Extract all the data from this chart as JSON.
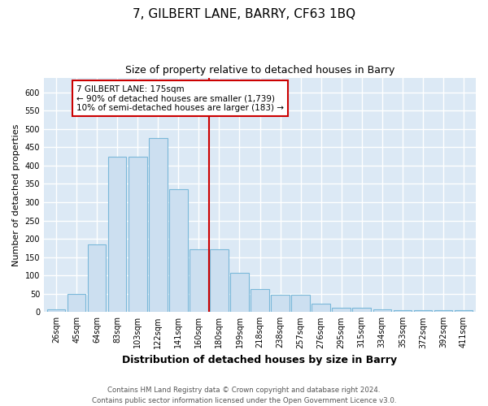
{
  "title": "7, GILBERT LANE, BARRY, CF63 1BQ",
  "subtitle": "Size of property relative to detached houses in Barry",
  "xlabel": "Distribution of detached houses by size in Barry",
  "ylabel": "Number of detached properties",
  "categories": [
    "26sqm",
    "45sqm",
    "64sqm",
    "83sqm",
    "103sqm",
    "122sqm",
    "141sqm",
    "160sqm",
    "180sqm",
    "199sqm",
    "218sqm",
    "238sqm",
    "257sqm",
    "276sqm",
    "295sqm",
    "315sqm",
    "334sqm",
    "353sqm",
    "372sqm",
    "392sqm",
    "411sqm"
  ],
  "values": [
    8,
    50,
    185,
    425,
    425,
    475,
    335,
    172,
    172,
    108,
    62,
    47,
    47,
    23,
    12,
    12,
    8,
    6,
    5,
    6,
    5
  ],
  "bar_color": "#ccdff0",
  "bar_edge_color": "#7ab8d9",
  "vline_x_index": 8,
  "vline_color": "#cc0000",
  "annotation_text": "7 GILBERT LANE: 175sqm\n← 90% of detached houses are smaller (1,739)\n10% of semi-detached houses are larger (183) →",
  "annotation_box_color": "#ffffff",
  "annotation_box_edge_color": "#cc0000",
  "plot_bg_color": "#dce9f5",
  "fig_bg_color": "#ffffff",
  "footer_text": "Contains HM Land Registry data © Crown copyright and database right 2024.\nContains public sector information licensed under the Open Government Licence v3.0.",
  "ylim": [
    0,
    640
  ],
  "yticks": [
    0,
    50,
    100,
    150,
    200,
    250,
    300,
    350,
    400,
    450,
    500,
    550,
    600
  ],
  "grid_color": "#ffffff",
  "title_fontsize": 11,
  "subtitle_fontsize": 9,
  "ylabel_fontsize": 8,
  "xlabel_fontsize": 9,
  "tick_fontsize": 7
}
